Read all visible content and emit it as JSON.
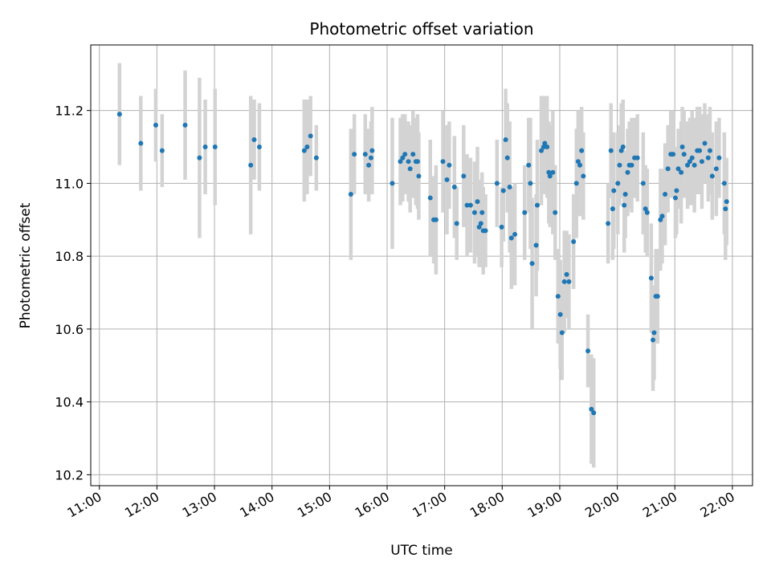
{
  "chart_data": {
    "type": "scatter",
    "title": "Photometric offset variation",
    "xlabel": "UTC time",
    "ylabel": "Photometric offset",
    "x_unit": "UTC hours",
    "xlim": [
      10.85,
      22.35
    ],
    "ylim": [
      10.17,
      11.38
    ],
    "grid": true,
    "xticks": [
      {
        "value": 11,
        "label": "11:00"
      },
      {
        "value": 12,
        "label": "12:00"
      },
      {
        "value": 13,
        "label": "13:00"
      },
      {
        "value": 14,
        "label": "14:00"
      },
      {
        "value": 15,
        "label": "15:00"
      },
      {
        "value": 16,
        "label": "16:00"
      },
      {
        "value": 17,
        "label": "17:00"
      },
      {
        "value": 18,
        "label": "18:00"
      },
      {
        "value": 19,
        "label": "19:00"
      },
      {
        "value": 20,
        "label": "20:00"
      },
      {
        "value": 21,
        "label": "21:00"
      },
      {
        "value": 22,
        "label": "22:00"
      }
    ],
    "yticks": [
      {
        "value": 10.2,
        "label": "10.2"
      },
      {
        "value": 10.4,
        "label": "10.4"
      },
      {
        "value": 10.6,
        "label": "10.6"
      },
      {
        "value": 10.8,
        "label": "10.8"
      },
      {
        "value": 11.0,
        "label": "11.0"
      },
      {
        "value": 11.2,
        "label": "11.2"
      }
    ],
    "colors": {
      "marker": "#1f77b4",
      "errorbar": "#d3d3d3",
      "grid": "#b0b0b0"
    },
    "series": [
      {
        "marker": "circle",
        "points": [
          [
            11.35,
            11.19,
            0.14
          ],
          [
            11.72,
            11.11,
            0.13
          ],
          [
            11.98,
            11.16,
            0.1
          ],
          [
            12.09,
            11.09,
            0.1
          ],
          [
            12.49,
            11.16,
            0.15
          ],
          [
            12.74,
            11.07,
            0.22
          ],
          [
            12.84,
            11.1,
            0.13
          ],
          [
            13.01,
            11.1,
            0.16
          ],
          [
            13.63,
            11.05,
            0.19
          ],
          [
            13.69,
            11.12,
            0.11
          ],
          [
            13.78,
            11.1,
            0.12
          ],
          [
            14.56,
            11.09,
            0.14
          ],
          [
            14.61,
            11.1,
            0.13
          ],
          [
            14.67,
            11.13,
            0.11
          ],
          [
            14.77,
            11.07,
            0.09
          ],
          [
            15.37,
            10.97,
            0.18
          ],
          [
            15.43,
            11.08,
            0.11
          ],
          [
            15.62,
            11.08,
            0.11
          ],
          [
            15.68,
            11.05,
            0.1
          ],
          [
            15.72,
            11.07,
            0.1
          ],
          [
            15.74,
            11.09,
            0.12
          ],
          [
            16.09,
            11.0,
            0.18
          ],
          [
            16.23,
            11.06,
            0.12
          ],
          [
            16.27,
            11.07,
            0.12
          ],
          [
            16.31,
            11.08,
            0.11
          ],
          [
            16.37,
            11.06,
            0.11
          ],
          [
            16.4,
            11.04,
            0.12
          ],
          [
            16.45,
            11.08,
            0.12
          ],
          [
            16.5,
            11.06,
            0.12
          ],
          [
            16.53,
            11.06,
            0.13
          ],
          [
            16.55,
            11.02,
            0.12
          ],
          [
            16.75,
            10.96,
            0.16
          ],
          [
            16.81,
            10.9,
            0.12
          ],
          [
            16.85,
            10.9,
            0.15
          ],
          [
            16.97,
            11.06,
            0.14
          ],
          [
            17.04,
            11.01,
            0.15
          ],
          [
            17.08,
            11.05,
            0.12
          ],
          [
            17.17,
            10.99,
            0.14
          ],
          [
            17.21,
            10.89,
            0.1
          ],
          [
            17.33,
            11.02,
            0.14
          ],
          [
            17.39,
            10.94,
            0.14
          ],
          [
            17.45,
            10.94,
            0.13
          ],
          [
            17.52,
            10.92,
            0.14
          ],
          [
            17.57,
            10.95,
            0.15
          ],
          [
            17.6,
            10.88,
            0.11
          ],
          [
            17.63,
            10.89,
            0.12
          ],
          [
            17.65,
            10.92,
            0.11
          ],
          [
            17.67,
            10.87,
            0.12
          ],
          [
            17.71,
            10.87,
            0.1
          ],
          [
            17.91,
            11.0,
            0.12
          ],
          [
            17.99,
            10.88,
            0.11
          ],
          [
            18.02,
            10.98,
            0.14
          ],
          [
            18.06,
            11.12,
            0.14
          ],
          [
            18.09,
            11.07,
            0.15
          ],
          [
            18.13,
            10.99,
            0.18
          ],
          [
            18.16,
            10.85,
            0.14
          ],
          [
            18.22,
            10.86,
            0.14
          ],
          [
            18.39,
            10.92,
            0.13
          ],
          [
            18.46,
            11.05,
            0.13
          ],
          [
            18.49,
            11.0,
            0.18
          ],
          [
            18.52,
            10.78,
            0.18
          ],
          [
            18.59,
            10.83,
            0.14
          ],
          [
            18.61,
            10.94,
            0.18
          ],
          [
            18.68,
            11.09,
            0.15
          ],
          [
            18.72,
            11.1,
            0.13
          ],
          [
            18.74,
            11.11,
            0.13
          ],
          [
            18.78,
            11.1,
            0.14
          ],
          [
            18.81,
            11.03,
            0.14
          ],
          [
            18.83,
            11.02,
            0.14
          ],
          [
            18.88,
            11.03,
            0.17
          ],
          [
            18.92,
            10.92,
            0.13
          ],
          [
            18.97,
            10.69,
            0.13
          ],
          [
            19.01,
            10.64,
            0.15
          ],
          [
            19.04,
            10.59,
            0.13
          ],
          [
            19.08,
            10.73,
            0.14
          ],
          [
            19.12,
            10.75,
            0.12
          ],
          [
            19.16,
            10.73,
            0.13
          ],
          [
            19.24,
            10.84,
            0.13
          ],
          [
            19.29,
            11.0,
            0.15
          ],
          [
            19.32,
            11.06,
            0.14
          ],
          [
            19.35,
            11.05,
            0.14
          ],
          [
            19.38,
            11.09,
            0.12
          ],
          [
            19.41,
            11.02,
            0.12
          ],
          [
            19.49,
            10.54,
            0.1
          ],
          [
            19.55,
            10.38,
            0.15
          ],
          [
            19.59,
            10.37,
            0.15
          ],
          [
            19.84,
            10.89,
            0.11
          ],
          [
            19.89,
            11.09,
            0.13
          ],
          [
            19.92,
            10.93,
            0.14
          ],
          [
            19.94,
            10.98,
            0.16
          ],
          [
            20.01,
            11.0,
            0.14
          ],
          [
            20.04,
            11.05,
            0.11
          ],
          [
            20.07,
            11.09,
            0.13
          ],
          [
            20.1,
            11.1,
            0.13
          ],
          [
            20.12,
            10.94,
            0.13
          ],
          [
            20.14,
            10.97,
            0.12
          ],
          [
            20.18,
            11.03,
            0.12
          ],
          [
            20.21,
            11.05,
            0.12
          ],
          [
            20.25,
            11.05,
            0.13
          ],
          [
            20.3,
            11.07,
            0.11
          ],
          [
            20.35,
            11.07,
            0.12
          ],
          [
            20.45,
            11.0,
            0.14
          ],
          [
            20.49,
            10.93,
            0.12
          ],
          [
            20.52,
            10.92,
            0.12
          ],
          [
            20.59,
            10.74,
            0.15
          ],
          [
            20.62,
            10.57,
            0.14
          ],
          [
            20.64,
            10.59,
            0.13
          ],
          [
            20.67,
            10.69,
            0.13
          ],
          [
            20.7,
            10.69,
            0.13
          ],
          [
            20.75,
            10.9,
            0.14
          ],
          [
            20.78,
            10.91,
            0.13
          ],
          [
            20.83,
            10.97,
            0.14
          ],
          [
            20.88,
            11.04,
            0.12
          ],
          [
            20.93,
            11.08,
            0.12
          ],
          [
            20.97,
            11.08,
            0.12
          ],
          [
            21.01,
            10.96,
            0.11
          ],
          [
            21.03,
            10.98,
            0.12
          ],
          [
            21.06,
            11.04,
            0.11
          ],
          [
            21.11,
            11.03,
            0.14
          ],
          [
            21.13,
            11.1,
            0.11
          ],
          [
            21.16,
            11.08,
            0.12
          ],
          [
            21.22,
            11.05,
            0.12
          ],
          [
            21.26,
            11.06,
            0.12
          ],
          [
            21.3,
            11.07,
            0.13
          ],
          [
            21.34,
            11.05,
            0.13
          ],
          [
            21.39,
            11.09,
            0.12
          ],
          [
            21.43,
            11.09,
            0.12
          ],
          [
            21.47,
            11.06,
            0.13
          ],
          [
            21.52,
            11.11,
            0.11
          ],
          [
            21.58,
            11.07,
            0.12
          ],
          [
            21.61,
            11.09,
            0.12
          ],
          [
            21.65,
            11.02,
            0.12
          ],
          [
            21.72,
            11.04,
            0.13
          ],
          [
            21.77,
            11.07,
            0.11
          ],
          [
            21.86,
            11.0,
            0.14
          ],
          [
            21.88,
            10.93,
            0.14
          ],
          [
            21.9,
            10.95,
            0.12
          ]
        ]
      }
    ]
  }
}
